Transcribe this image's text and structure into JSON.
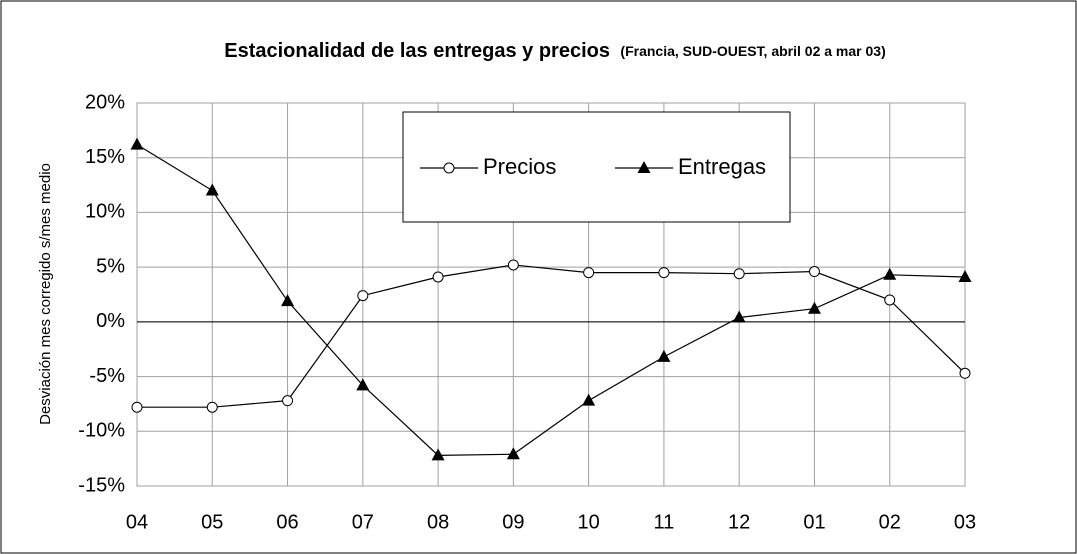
{
  "chart_data": {
    "type": "line",
    "title": "Estacionalidad de las entregas y precios",
    "subtitle": "(Francia, SUD-OUEST, abril 02 a mar 03)",
    "ylabel": "Desviación mes corregido s/mes medio",
    "categories": [
      "04",
      "05",
      "06",
      "07",
      "08",
      "09",
      "10",
      "11",
      "12",
      "01",
      "02",
      "03"
    ],
    "series": [
      {
        "name": "Precios",
        "color": "#000000",
        "marker": "circle",
        "values": [
          -7.8,
          -7.8,
          -7.2,
          2.4,
          4.1,
          5.2,
          4.5,
          4.5,
          4.4,
          4.6,
          2.0,
          -4.7
        ]
      },
      {
        "name": "Entregas",
        "color": "#000000",
        "marker": "triangle",
        "values": [
          16.2,
          12.0,
          1.9,
          -5.8,
          -12.2,
          -12.1,
          -7.2,
          -3.2,
          0.4,
          1.2,
          4.3,
          4.1
        ]
      }
    ],
    "ylim": [
      -15,
      20
    ],
    "yticks": [
      {
        "value": -15,
        "label": "-15%"
      },
      {
        "value": -10,
        "label": "-10%"
      },
      {
        "value": -5,
        "label": "-5%"
      },
      {
        "value": 0,
        "label": "0%"
      },
      {
        "value": 5,
        "label": "5%"
      },
      {
        "value": 10,
        "label": "10%"
      },
      {
        "value": 15,
        "label": "15%"
      },
      {
        "value": 20,
        "label": "20%"
      }
    ],
    "grid": true
  }
}
